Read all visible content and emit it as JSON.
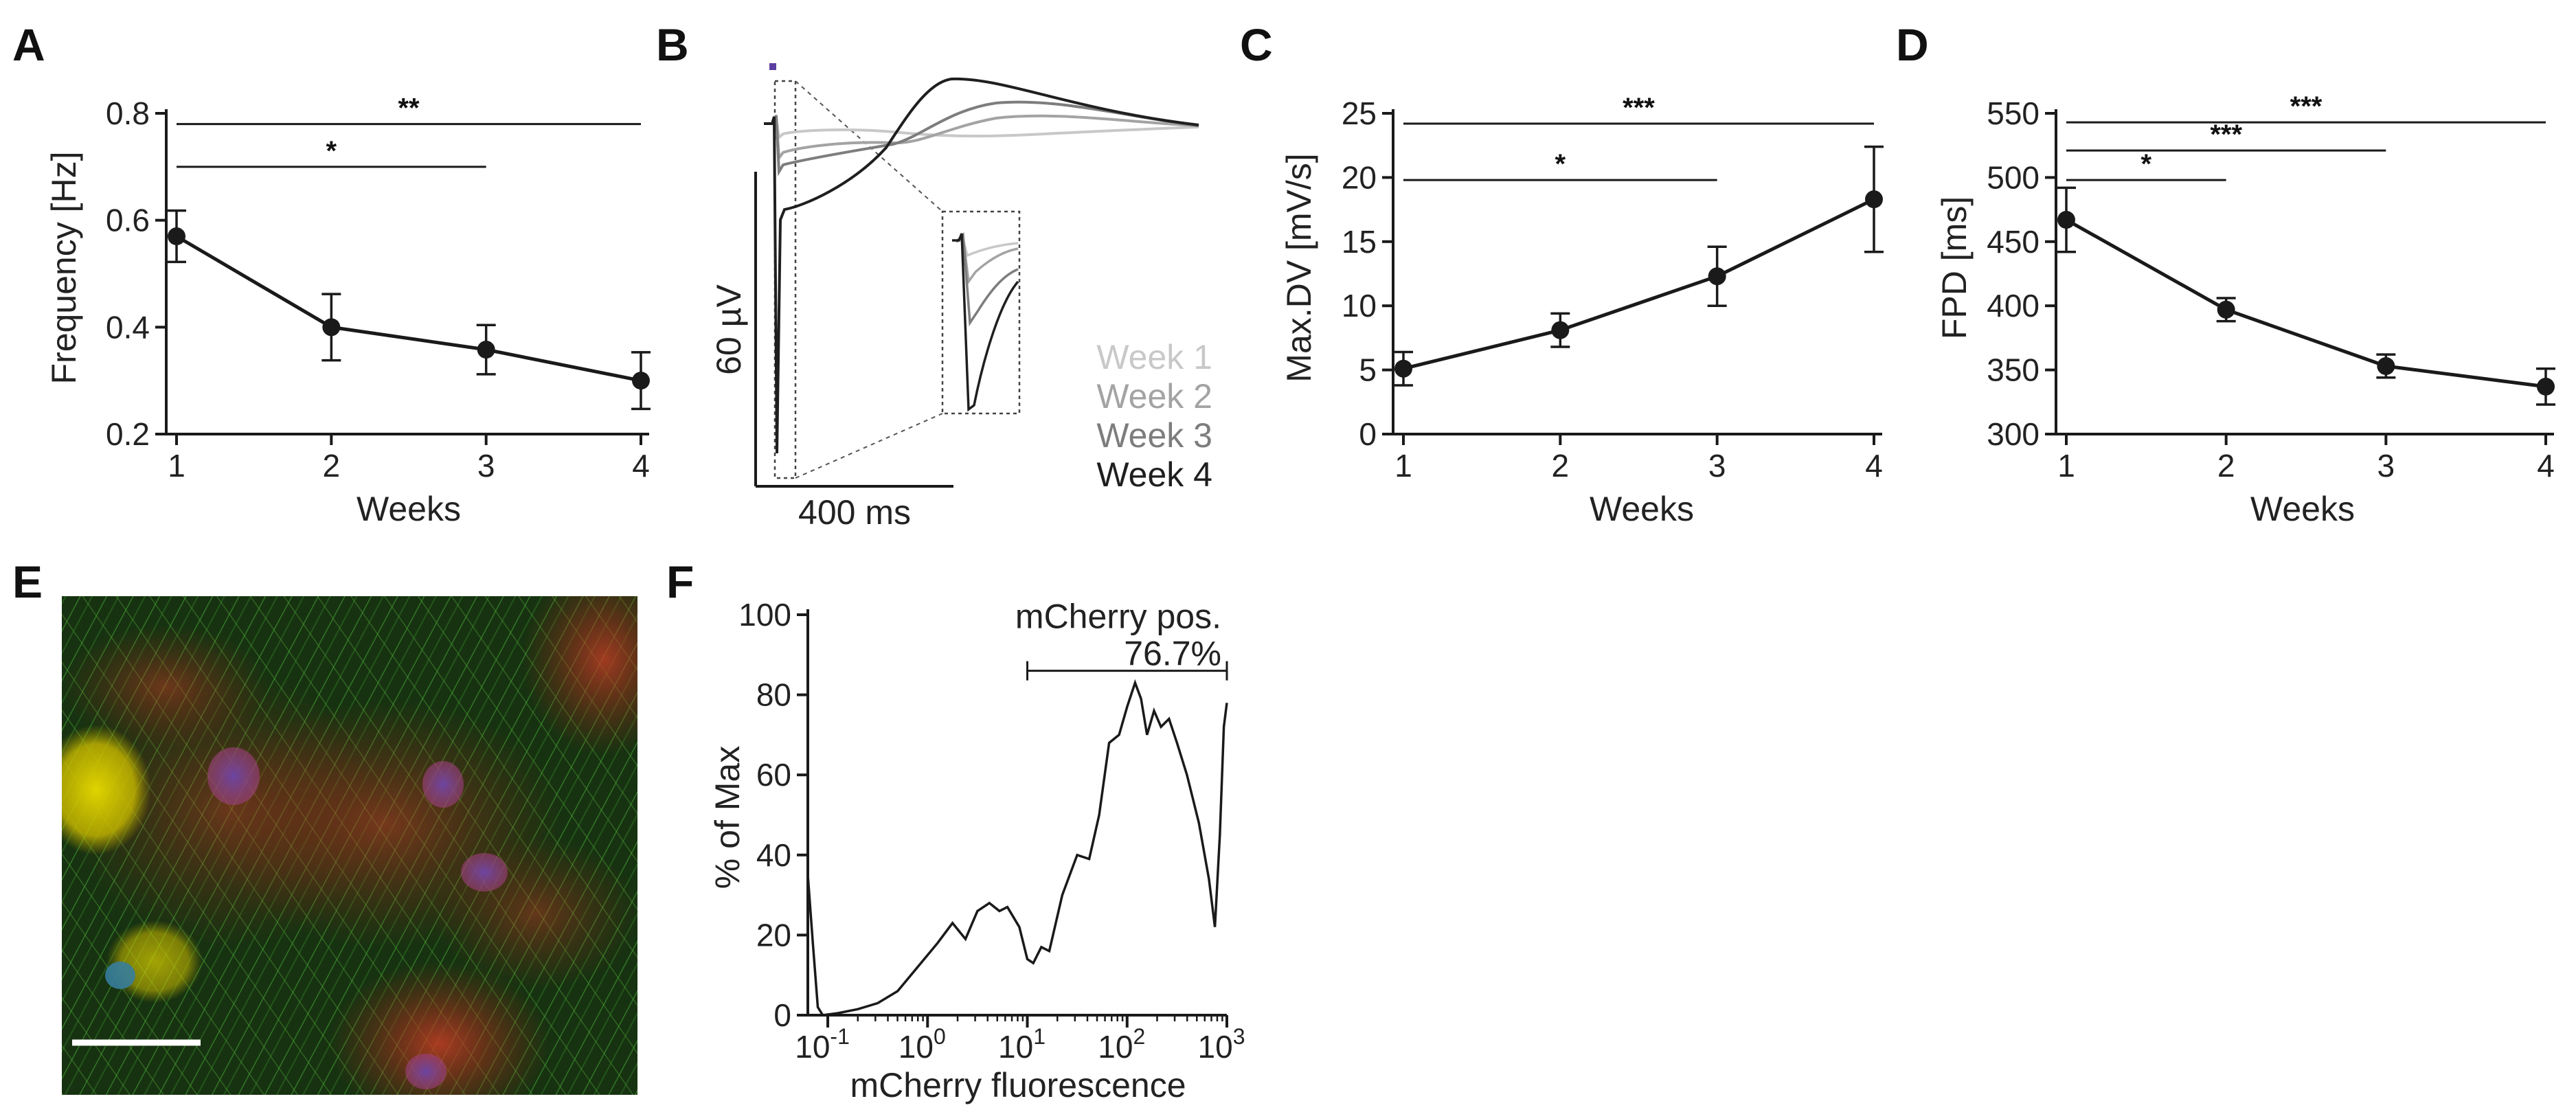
{
  "chart_data": [
    {
      "panel": "A",
      "type": "line",
      "xlabel": "Weeks",
      "ylabel": "Frequency [Hz]",
      "x": [
        1,
        2,
        3,
        4
      ],
      "values": [
        0.57,
        0.4,
        0.358,
        0.3
      ],
      "errors": [
        0.048,
        0.062,
        0.046,
        0.053
      ],
      "xticks": [
        "1",
        "2",
        "3",
        "4"
      ],
      "yticks": [
        "0.2",
        "0.4",
        "0.6",
        "0.8"
      ],
      "ytick_values": [
        0.2,
        0.4,
        0.6,
        0.8
      ],
      "ylim": [
        0.2,
        0.8
      ],
      "significance": [
        {
          "from": 1,
          "to": 4,
          "y": 0.78,
          "label": "**"
        },
        {
          "from": 1,
          "to": 3,
          "y": 0.7,
          "label": "*"
        }
      ]
    },
    {
      "panel": "B",
      "type": "line",
      "title": "Field potential traces",
      "legend": [
        "Week 1",
        "Week 2",
        "Week 3",
        "Week 4"
      ],
      "legend_colors": [
        "#c8c8c8",
        "#a3a3a3",
        "#7d7d7d",
        "#1f1f1f"
      ],
      "scalebar_y": "60 µV",
      "scalebar_x": "400 ms",
      "stimulus_color": "#5b3fa0"
    },
    {
      "panel": "C",
      "type": "line",
      "xlabel": "Weeks",
      "ylabel": "Max.DV [mV/s]",
      "x": [
        1,
        2,
        3,
        4
      ],
      "values": [
        5.1,
        8.1,
        12.3,
        18.3
      ],
      "errors": [
        1.3,
        1.3,
        2.3,
        4.1
      ],
      "xticks": [
        "1",
        "2",
        "3",
        "4"
      ],
      "yticks": [
        "0",
        "5",
        "10",
        "15",
        "20",
        "25"
      ],
      "ytick_values": [
        0,
        5,
        10,
        15,
        20,
        25
      ],
      "ylim": [
        0,
        25
      ],
      "significance": [
        {
          "from": 1,
          "to": 4,
          "y": 24.2,
          "label": "***"
        },
        {
          "from": 1,
          "to": 3,
          "y": 19.8,
          "label": "*"
        }
      ]
    },
    {
      "panel": "D",
      "type": "line",
      "xlabel": "Weeks",
      "ylabel": "FPD [ms]",
      "x": [
        1,
        2,
        3,
        4
      ],
      "values": [
        467,
        397,
        353,
        337
      ],
      "errors": [
        25,
        9,
        9,
        14
      ],
      "xticks": [
        "1",
        "2",
        "3",
        "4"
      ],
      "yticks": [
        "300",
        "350",
        "400",
        "450",
        "500",
        "550"
      ],
      "ytick_values": [
        300,
        350,
        400,
        450,
        500,
        550
      ],
      "ylim": [
        300,
        550
      ],
      "significance": [
        {
          "from": 1,
          "to": 4,
          "y": 543,
          "label": "***"
        },
        {
          "from": 1,
          "to": 3,
          "y": 521,
          "label": "***"
        },
        {
          "from": 1,
          "to": 2,
          "y": 498,
          "label": "*"
        }
      ]
    },
    {
      "panel": "E",
      "type": "image",
      "title": "Fluorescence micrograph (green filaments, red cytoplasm, blue nuclei)"
    },
    {
      "panel": "F",
      "type": "area",
      "xlabel": "mCherry fluorescence",
      "ylabel": "% of Max",
      "xscale": "log",
      "xlim_log10": [
        -1.2,
        3
      ],
      "ylim": [
        0,
        100
      ],
      "yticks": [
        "0",
        "20",
        "40",
        "60",
        "80",
        "100"
      ],
      "ytick_values": [
        0,
        20,
        40,
        60,
        80,
        100
      ],
      "xticks": [
        {
          "base": "10",
          "exp": "-1",
          "log": -1
        },
        {
          "base": "10",
          "exp": "0",
          "log": 0
        },
        {
          "base": "10",
          "exp": "1",
          "log": 1
        },
        {
          "base": "10",
          "exp": "2",
          "log": 2
        },
        {
          "base": "10",
          "exp": "3",
          "log": 3
        }
      ],
      "gate_label": "mCherry pos.",
      "gate_percent": "76.7%",
      "gate_from_log": 1,
      "gate_to_log": 3,
      "gate_y": 86,
      "curve": [
        [
          -1.2,
          35
        ],
        [
          -1.15,
          18
        ],
        [
          -1.1,
          2
        ],
        [
          -1.05,
          0
        ],
        [
          -0.9,
          0.5
        ],
        [
          -0.7,
          1.5
        ],
        [
          -0.5,
          3
        ],
        [
          -0.3,
          6
        ],
        [
          -0.1,
          12
        ],
        [
          0.1,
          18
        ],
        [
          0.25,
          23
        ],
        [
          0.38,
          19
        ],
        [
          0.5,
          26
        ],
        [
          0.62,
          28
        ],
        [
          0.72,
          26
        ],
        [
          0.8,
          27
        ],
        [
          0.92,
          22
        ],
        [
          1.0,
          14
        ],
        [
          1.06,
          13
        ],
        [
          1.14,
          17
        ],
        [
          1.22,
          16
        ],
        [
          1.35,
          30
        ],
        [
          1.5,
          40
        ],
        [
          1.62,
          39
        ],
        [
          1.72,
          50
        ],
        [
          1.82,
          68
        ],
        [
          1.92,
          70
        ],
        [
          2.0,
          77
        ],
        [
          2.08,
          83
        ],
        [
          2.14,
          79
        ],
        [
          2.2,
          70
        ],
        [
          2.27,
          76
        ],
        [
          2.34,
          72
        ],
        [
          2.42,
          74
        ],
        [
          2.5,
          68
        ],
        [
          2.6,
          60
        ],
        [
          2.72,
          48
        ],
        [
          2.82,
          34
        ],
        [
          2.88,
          22
        ],
        [
          2.93,
          45
        ],
        [
          2.97,
          72
        ],
        [
          3.0,
          78
        ]
      ]
    }
  ],
  "figure": {
    "colors": {
      "ink": "#1a1a1a",
      "stimulus": "#5b3fa0"
    }
  }
}
